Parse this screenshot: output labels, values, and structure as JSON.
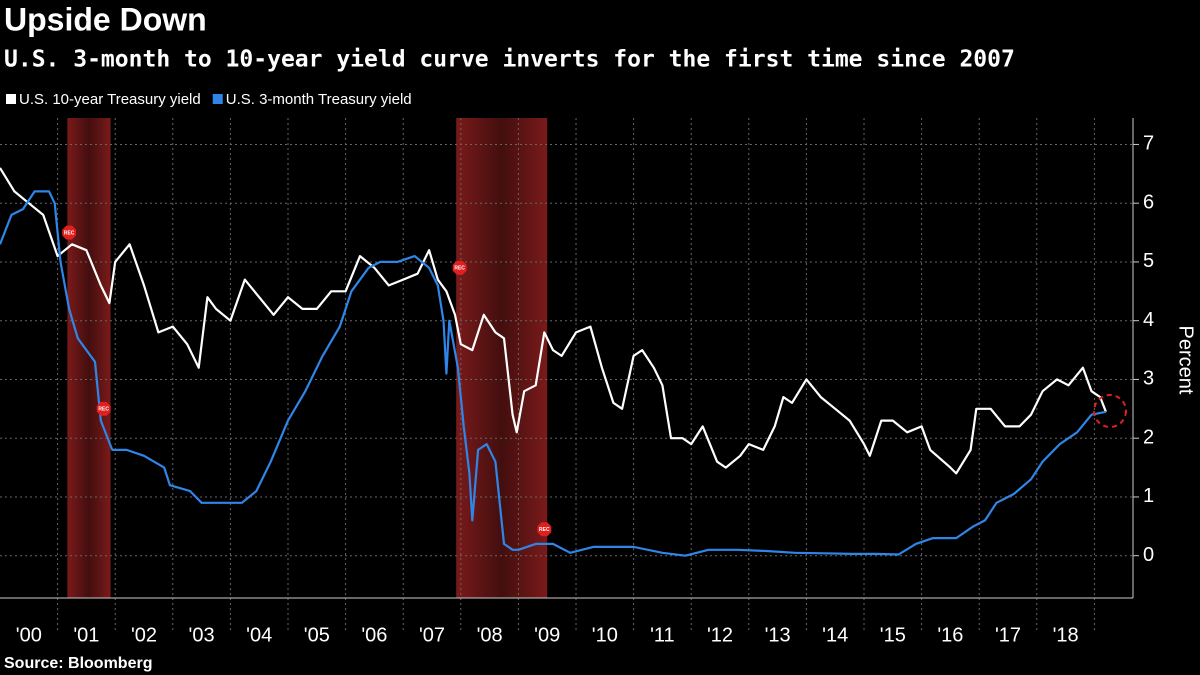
{
  "chart_data": {
    "type": "line",
    "title": "Upside Down",
    "subtitle": "U.S. 3-month to 10-year yield curve inverts for the first time since 2007",
    "ylabel": "Percent",
    "source": "Source: Bloomberg",
    "xlim": [
      2000,
      2019.67
    ],
    "ylim": [
      -0.72,
      7.45
    ],
    "yticks": [
      0,
      1,
      2,
      3,
      4,
      5,
      6,
      7
    ],
    "xticks": [
      {
        "value": 2000.5,
        "label": "'00"
      },
      {
        "value": 2001.5,
        "label": "'01"
      },
      {
        "value": 2002.5,
        "label": "'02"
      },
      {
        "value": 2003.5,
        "label": "'03"
      },
      {
        "value": 2004.5,
        "label": "'04"
      },
      {
        "value": 2005.5,
        "label": "'05"
      },
      {
        "value": 2006.5,
        "label": "'06"
      },
      {
        "value": 2007.5,
        "label": "'07"
      },
      {
        "value": 2008.5,
        "label": "'08"
      },
      {
        "value": 2009.5,
        "label": "'09"
      },
      {
        "value": 2010.5,
        "label": "'10"
      },
      {
        "value": 2011.5,
        "label": "'11"
      },
      {
        "value": 2012.5,
        "label": "'12"
      },
      {
        "value": 2013.5,
        "label": "'13"
      },
      {
        "value": 2014.5,
        "label": "'14"
      },
      {
        "value": 2015.5,
        "label": "'15"
      },
      {
        "value": 2016.5,
        "label": "'16"
      },
      {
        "value": 2017.5,
        "label": "'17"
      },
      {
        "value": 2018.5,
        "label": "'18"
      }
    ],
    "xgrid": [
      2001,
      2002,
      2003,
      2004,
      2005,
      2006,
      2007,
      2008,
      2009,
      2010,
      2011,
      2012,
      2013,
      2014,
      2015,
      2016,
      2017,
      2018,
      2019
    ],
    "grid": true,
    "legend": "top-left",
    "shaded_ranges": [
      [
        2001.17,
        2001.92
      ],
      [
        2007.92,
        2009.5
      ]
    ],
    "shade_color": "#7a1a1a",
    "annotations": [
      {
        "x": 2001.2,
        "y": 5.5,
        "label": "REC"
      },
      {
        "x": 2001.8,
        "y": 2.5,
        "label": "REC"
      },
      {
        "x": 2007.98,
        "y": 4.9,
        "label": "REC"
      },
      {
        "x": 2009.45,
        "y": 0.45,
        "label": "REC"
      }
    ],
    "series": [
      {
        "name": "U.S. 10-year Treasury yield",
        "color": "#ffffff",
        "x": [
          2000.0,
          2000.25,
          2000.5,
          2000.75,
          2001.0,
          2001.25,
          2001.5,
          2001.75,
          2001.9,
          2002.0,
          2002.25,
          2002.5,
          2002.75,
          2003.0,
          2003.25,
          2003.45,
          2003.6,
          2003.75,
          2004.0,
          2004.25,
          2004.5,
          2004.75,
          2005.0,
          2005.25,
          2005.5,
          2005.75,
          2006.0,
          2006.25,
          2006.5,
          2006.75,
          2007.0,
          2007.25,
          2007.45,
          2007.6,
          2007.75,
          2007.9,
          2008.0,
          2008.2,
          2008.4,
          2008.6,
          2008.75,
          2008.9,
          2008.97,
          2009.1,
          2009.3,
          2009.45,
          2009.6,
          2009.75,
          2010.0,
          2010.25,
          2010.45,
          2010.65,
          2010.8,
          2011.0,
          2011.15,
          2011.35,
          2011.5,
          2011.65,
          2011.85,
          2012.0,
          2012.2,
          2012.45,
          2012.6,
          2012.85,
          2013.0,
          2013.25,
          2013.45,
          2013.6,
          2013.75,
          2014.0,
          2014.25,
          2014.5,
          2014.75,
          2015.0,
          2015.1,
          2015.3,
          2015.5,
          2015.75,
          2016.0,
          2016.15,
          2016.5,
          2016.6,
          2016.85,
          2016.95,
          2017.2,
          2017.45,
          2017.7,
          2017.9,
          2018.1,
          2018.35,
          2018.55,
          2018.8,
          2018.95,
          2019.1,
          2019.2
        ],
        "values": [
          6.6,
          6.2,
          6.0,
          5.8,
          5.1,
          5.3,
          5.2,
          4.6,
          4.3,
          5.0,
          5.3,
          4.6,
          3.8,
          3.9,
          3.6,
          3.2,
          4.4,
          4.2,
          4.0,
          4.7,
          4.4,
          4.1,
          4.4,
          4.2,
          4.2,
          4.5,
          4.5,
          5.1,
          4.9,
          4.6,
          4.7,
          4.8,
          5.2,
          4.7,
          4.5,
          4.1,
          3.6,
          3.5,
          4.1,
          3.8,
          3.7,
          2.4,
          2.1,
          2.8,
          2.9,
          3.8,
          3.5,
          3.4,
          3.8,
          3.9,
          3.2,
          2.6,
          2.5,
          3.4,
          3.5,
          3.2,
          2.9,
          2.0,
          2.0,
          1.9,
          2.2,
          1.6,
          1.5,
          1.7,
          1.9,
          1.8,
          2.2,
          2.7,
          2.6,
          3.0,
          2.7,
          2.5,
          2.3,
          1.9,
          1.7,
          2.3,
          2.3,
          2.1,
          2.2,
          1.8,
          1.5,
          1.4,
          1.8,
          2.5,
          2.5,
          2.2,
          2.2,
          2.4,
          2.8,
          3.0,
          2.9,
          3.2,
          2.8,
          2.7,
          2.45
        ]
      },
      {
        "name": "U.S. 3-month Treasury yield",
        "color": "#2f86e8",
        "x": [
          2000.0,
          2000.2,
          2000.4,
          2000.6,
          2000.85,
          2000.95,
          2001.05,
          2001.2,
          2001.35,
          2001.5,
          2001.65,
          2001.75,
          2001.95,
          2002.2,
          2002.5,
          2002.85,
          2002.95,
          2003.3,
          2003.5,
          2003.8,
          2004.2,
          2004.45,
          2004.7,
          2005.0,
          2005.3,
          2005.6,
          2005.9,
          2006.1,
          2006.4,
          2006.6,
          2006.9,
          2007.2,
          2007.45,
          2007.6,
          2007.7,
          2007.75,
          2007.8,
          2007.95,
          2008.05,
          2008.15,
          2008.2,
          2008.3,
          2008.45,
          2008.6,
          2008.75,
          2008.9,
          2009.0,
          2009.3,
          2009.6,
          2009.9,
          2010.3,
          2010.7,
          2011.0,
          2011.5,
          2011.9,
          2012.3,
          2012.8,
          2013.3,
          2013.8,
          2014.3,
          2014.8,
          2015.2,
          2015.6,
          2015.9,
          2016.2,
          2016.6,
          2016.9,
          2017.1,
          2017.3,
          2017.6,
          2017.9,
          2018.1,
          2018.4,
          2018.7,
          2018.95,
          2019.2
        ],
        "values": [
          5.3,
          5.8,
          5.9,
          6.2,
          6.2,
          6.0,
          5.0,
          4.2,
          3.7,
          3.5,
          3.3,
          2.3,
          1.8,
          1.8,
          1.7,
          1.5,
          1.2,
          1.1,
          0.9,
          0.9,
          0.9,
          1.1,
          1.6,
          2.3,
          2.8,
          3.4,
          3.9,
          4.5,
          4.9,
          5.0,
          5.0,
          5.1,
          4.9,
          4.6,
          4.0,
          3.1,
          4.0,
          3.2,
          2.2,
          1.4,
          0.6,
          1.8,
          1.9,
          1.6,
          0.2,
          0.1,
          0.1,
          0.2,
          0.2,
          0.05,
          0.15,
          0.15,
          0.15,
          0.05,
          0.0,
          0.1,
          0.1,
          0.08,
          0.05,
          0.04,
          0.03,
          0.03,
          0.02,
          0.2,
          0.3,
          0.3,
          0.5,
          0.6,
          0.9,
          1.05,
          1.3,
          1.6,
          1.9,
          2.1,
          2.4,
          2.45
        ]
      }
    ]
  }
}
